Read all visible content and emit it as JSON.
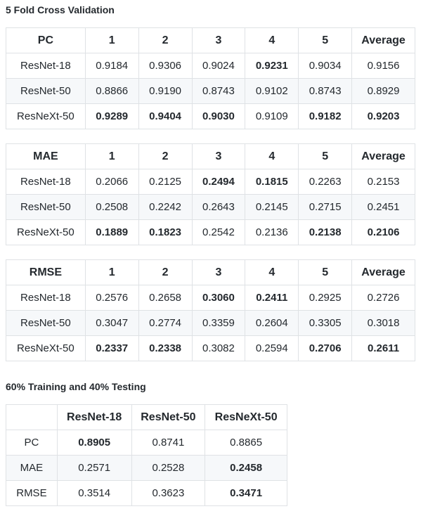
{
  "sections": {
    "cv_title": "5 Fold Cross Validation",
    "split_title": "60% Training and 40% Testing"
  },
  "pc_table": {
    "headers": [
      "PC",
      "1",
      "2",
      "3",
      "4",
      "5",
      "Average"
    ],
    "rows": [
      {
        "model": "ResNet-18",
        "cells": [
          {
            "v": "0.9184",
            "bold": false
          },
          {
            "v": "0.9306",
            "bold": false
          },
          {
            "v": "0.9024",
            "bold": false
          },
          {
            "v": "0.9231",
            "bold": true
          },
          {
            "v": "0.9034",
            "bold": false
          },
          {
            "v": "0.9156",
            "bold": false
          }
        ]
      },
      {
        "model": "ResNet-50",
        "cells": [
          {
            "v": "0.8866",
            "bold": false
          },
          {
            "v": "0.9190",
            "bold": false
          },
          {
            "v": "0.8743",
            "bold": false
          },
          {
            "v": "0.9102",
            "bold": false
          },
          {
            "v": "0.8743",
            "bold": false
          },
          {
            "v": "0.8929",
            "bold": false
          }
        ]
      },
      {
        "model": "ResNeXt-50",
        "cells": [
          {
            "v": "0.9289",
            "bold": true
          },
          {
            "v": "0.9404",
            "bold": true
          },
          {
            "v": "0.9030",
            "bold": true
          },
          {
            "v": "0.9109",
            "bold": false
          },
          {
            "v": "0.9182",
            "bold": true
          },
          {
            "v": "0.9203",
            "bold": true
          }
        ]
      }
    ]
  },
  "mae_table": {
    "headers": [
      "MAE",
      "1",
      "2",
      "3",
      "4",
      "5",
      "Average"
    ],
    "rows": [
      {
        "model": "ResNet-18",
        "cells": [
          {
            "v": "0.2066",
            "bold": false
          },
          {
            "v": "0.2125",
            "bold": false
          },
          {
            "v": "0.2494",
            "bold": true
          },
          {
            "v": "0.1815",
            "bold": true
          },
          {
            "v": "0.2263",
            "bold": false
          },
          {
            "v": "0.2153",
            "bold": false
          }
        ]
      },
      {
        "model": "ResNet-50",
        "cells": [
          {
            "v": "0.2508",
            "bold": false
          },
          {
            "v": "0.2242",
            "bold": false
          },
          {
            "v": "0.2643",
            "bold": false
          },
          {
            "v": "0.2145",
            "bold": false
          },
          {
            "v": "0.2715",
            "bold": false
          },
          {
            "v": "0.2451",
            "bold": false
          }
        ]
      },
      {
        "model": "ResNeXt-50",
        "cells": [
          {
            "v": "0.1889",
            "bold": true
          },
          {
            "v": "0.1823",
            "bold": true
          },
          {
            "v": "0.2542",
            "bold": false
          },
          {
            "v": "0.2136",
            "bold": false
          },
          {
            "v": "0.2138",
            "bold": true
          },
          {
            "v": "0.2106",
            "bold": true
          }
        ]
      }
    ]
  },
  "rmse_table": {
    "headers": [
      "RMSE",
      "1",
      "2",
      "3",
      "4",
      "5",
      "Average"
    ],
    "rows": [
      {
        "model": "ResNet-18",
        "cells": [
          {
            "v": "0.2576",
            "bold": false
          },
          {
            "v": "0.2658",
            "bold": false
          },
          {
            "v": "0.3060",
            "bold": true
          },
          {
            "v": "0.2411",
            "bold": true
          },
          {
            "v": "0.2925",
            "bold": false
          },
          {
            "v": "0.2726",
            "bold": false
          }
        ]
      },
      {
        "model": "ResNet-50",
        "cells": [
          {
            "v": "0.3047",
            "bold": false
          },
          {
            "v": "0.2774",
            "bold": false
          },
          {
            "v": "0.3359",
            "bold": false
          },
          {
            "v": "0.2604",
            "bold": false
          },
          {
            "v": "0.3305",
            "bold": false
          },
          {
            "v": "0.3018",
            "bold": false
          }
        ]
      },
      {
        "model": "ResNeXt-50",
        "cells": [
          {
            "v": "0.2337",
            "bold": true
          },
          {
            "v": "0.2338",
            "bold": true
          },
          {
            "v": "0.3082",
            "bold": false
          },
          {
            "v": "0.2594",
            "bold": false
          },
          {
            "v": "0.2706",
            "bold": true
          },
          {
            "v": "0.2611",
            "bold": true
          }
        ]
      }
    ]
  },
  "split_table": {
    "headers": [
      "",
      "ResNet-18",
      "ResNet-50",
      "ResNeXt-50"
    ],
    "rows": [
      {
        "metric": "PC",
        "cells": [
          {
            "v": "0.8905",
            "bold": true
          },
          {
            "v": "0.8741",
            "bold": false
          },
          {
            "v": "0.8865",
            "bold": false
          }
        ]
      },
      {
        "metric": "MAE",
        "cells": [
          {
            "v": "0.2571",
            "bold": false
          },
          {
            "v": "0.2528",
            "bold": false
          },
          {
            "v": "0.2458",
            "bold": true
          }
        ]
      },
      {
        "metric": "RMSE",
        "cells": [
          {
            "v": "0.3514",
            "bold": false
          },
          {
            "v": "0.3623",
            "bold": false
          },
          {
            "v": "0.3471",
            "bold": true
          }
        ]
      }
    ]
  }
}
